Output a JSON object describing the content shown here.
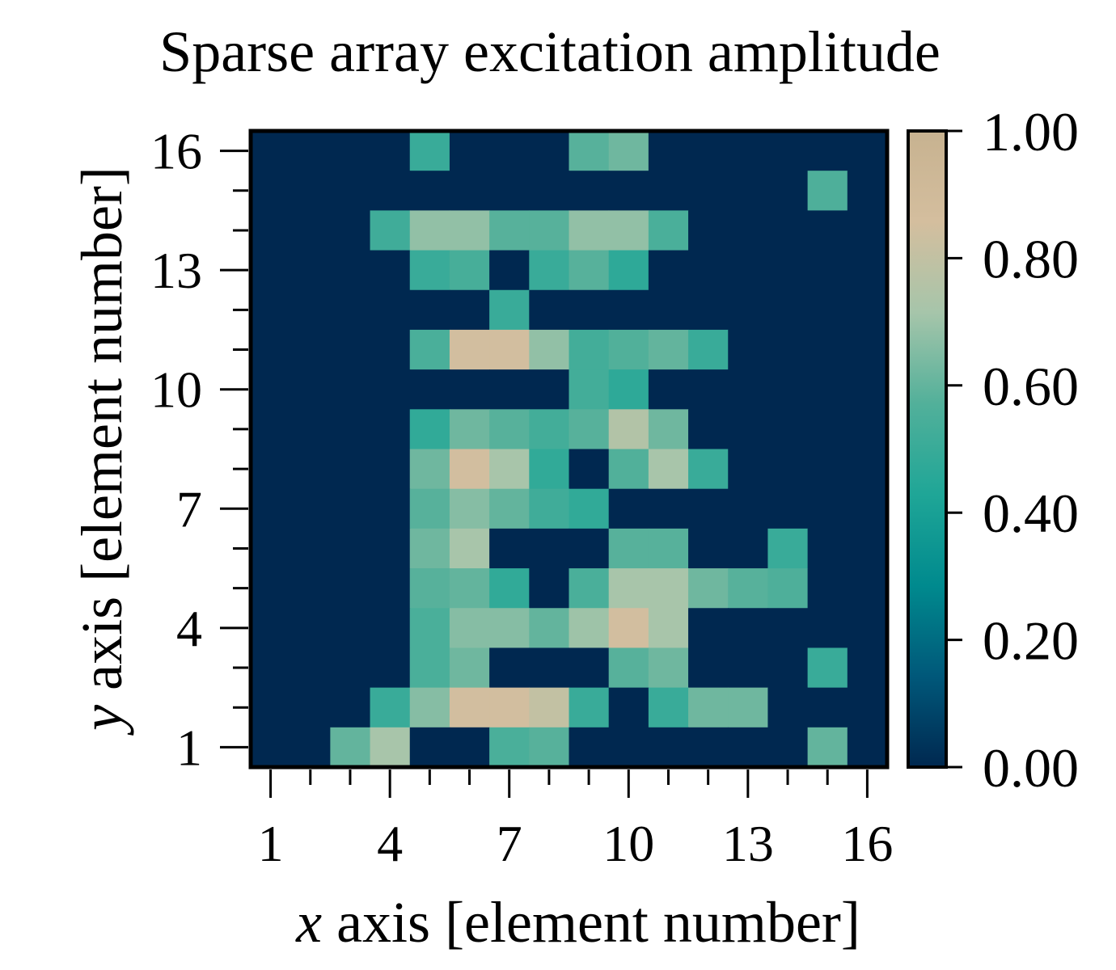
{
  "chart_data": {
    "type": "heatmap",
    "title": "Sparse array excitation amplitude",
    "xlabel": {
      "var": "x",
      "rest": " axis [element number]"
    },
    "ylabel": {
      "var": "y",
      "rest": " axis [element number]"
    },
    "xlim": [
      0.5,
      16.5
    ],
    "ylim": [
      0.5,
      16.5
    ],
    "xticks": [
      1,
      4,
      7,
      10,
      13,
      16
    ],
    "yticks": [
      1,
      4,
      7,
      10,
      13,
      16
    ],
    "colorbar": {
      "range": [
        0,
        1
      ],
      "ticks": [
        "0.00",
        "0.20",
        "0.40",
        "0.60",
        "0.80",
        "1.00"
      ],
      "colormap_stops": [
        "#002850",
        "#00587a",
        "#008a8e",
        "#1fa697",
        "#52b09a",
        "#a6c5aa",
        "#d4be9e",
        "#c7b290"
      ]
    },
    "grid": false,
    "rows_from_top": [
      [
        0,
        0,
        0,
        0,
        0.5,
        0,
        0,
        0,
        0.58,
        0.62,
        0,
        0,
        0,
        0,
        0,
        0
      ],
      [
        0,
        0,
        0,
        0,
        0,
        0,
        0,
        0,
        0,
        0,
        0,
        0,
        0,
        0,
        0.56,
        0
      ],
      [
        0,
        0,
        0,
        0.52,
        0.68,
        0.68,
        0.58,
        0.58,
        0.68,
        0.68,
        0.55,
        0,
        0,
        0,
        0,
        0
      ],
      [
        0,
        0,
        0,
        0,
        0.5,
        0.54,
        0,
        0.5,
        0.58,
        0.47,
        0,
        0,
        0,
        0,
        0,
        0
      ],
      [
        0,
        0,
        0,
        0,
        0,
        0,
        0.5,
        0,
        0,
        0,
        0,
        0,
        0,
        0,
        0,
        0
      ],
      [
        0,
        0,
        0,
        0,
        0.55,
        0.85,
        0.85,
        0.68,
        0.53,
        0.57,
        0.6,
        0.5,
        0,
        0,
        0,
        0
      ],
      [
        0,
        0,
        0,
        0,
        0,
        0,
        0,
        0,
        0.53,
        0.47,
        0,
        0,
        0,
        0,
        0,
        0
      ],
      [
        0,
        0,
        0,
        0,
        0.48,
        0.62,
        0.58,
        0.53,
        0.58,
        0.75,
        0.62,
        0,
        0,
        0,
        0,
        0
      ],
      [
        0,
        0,
        0,
        0,
        0.62,
        0.85,
        0.72,
        0.48,
        0,
        0.57,
        0.72,
        0.5,
        0,
        0,
        0,
        0
      ],
      [
        0,
        0,
        0,
        0,
        0.58,
        0.66,
        0.6,
        0.52,
        0.48,
        0,
        0,
        0,
        0,
        0,
        0,
        0
      ],
      [
        0,
        0,
        0,
        0,
        0.62,
        0.72,
        0,
        0,
        0,
        0.58,
        0.58,
        0,
        0,
        0.5,
        0,
        0
      ],
      [
        0,
        0,
        0,
        0,
        0.58,
        0.6,
        0.48,
        0,
        0.55,
        0.72,
        0.72,
        0.62,
        0.58,
        0.56,
        0,
        0
      ],
      [
        0,
        0,
        0,
        0,
        0.55,
        0.66,
        0.66,
        0.6,
        0.7,
        0.85,
        0.72,
        0,
        0,
        0,
        0,
        0
      ],
      [
        0,
        0,
        0,
        0,
        0.55,
        0.62,
        0,
        0,
        0,
        0.58,
        0.62,
        0,
        0,
        0,
        0.5,
        0
      ],
      [
        0,
        0,
        0,
        0.5,
        0.66,
        0.85,
        0.85,
        0.8,
        0.5,
        0,
        0.5,
        0.62,
        0.62,
        0,
        0,
        0
      ],
      [
        0,
        0,
        0.6,
        0.72,
        0,
        0,
        0.55,
        0.58,
        0,
        0,
        0,
        0,
        0,
        0,
        0.6,
        0
      ]
    ]
  }
}
